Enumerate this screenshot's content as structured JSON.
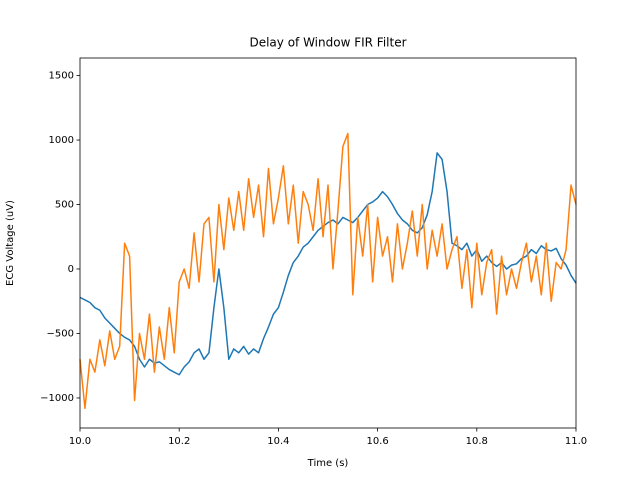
{
  "chart_data": {
    "type": "line",
    "title": "Delay of Window FIR Filter",
    "xlabel": "Time (s)",
    "ylabel": "ECG Voltage (uV)",
    "x": [
      10.0,
      10.01,
      10.02,
      10.03,
      10.04,
      10.05,
      10.06,
      10.07,
      10.08,
      10.09,
      10.1,
      10.11,
      10.12,
      10.13,
      10.14,
      10.15,
      10.16,
      10.17,
      10.18,
      10.19,
      10.2,
      10.21,
      10.22,
      10.23,
      10.24,
      10.25,
      10.26,
      10.27,
      10.28,
      10.29,
      10.3,
      10.31,
      10.32,
      10.33,
      10.34,
      10.35,
      10.36,
      10.37,
      10.38,
      10.39,
      10.4,
      10.41,
      10.42,
      10.43,
      10.44,
      10.45,
      10.46,
      10.47,
      10.48,
      10.49,
      10.5,
      10.51,
      10.52,
      10.53,
      10.54,
      10.55,
      10.56,
      10.57,
      10.58,
      10.59,
      10.6,
      10.61,
      10.62,
      10.63,
      10.64,
      10.65,
      10.66,
      10.67,
      10.68,
      10.69,
      10.7,
      10.71,
      10.72,
      10.73,
      10.74,
      10.75,
      10.76,
      10.77,
      10.78,
      10.79,
      10.8,
      10.81,
      10.82,
      10.83,
      10.84,
      10.85,
      10.86,
      10.87,
      10.88,
      10.89,
      10.9,
      10.91,
      10.92,
      10.93,
      10.94,
      10.95,
      10.96,
      10.97,
      10.98,
      10.99,
      11.0
    ],
    "series": [
      {
        "color": "#1f77b4",
        "values": [
          -220,
          -240,
          -260,
          -300,
          -320,
          -380,
          -420,
          -460,
          -500,
          -530,
          -550,
          -600,
          -700,
          -760,
          -700,
          -730,
          -720,
          -750,
          -780,
          -800,
          -820,
          -760,
          -720,
          -650,
          -620,
          -700,
          -650,
          -300,
          0,
          -300,
          -700,
          -620,
          -650,
          -600,
          -660,
          -620,
          -650,
          -540,
          -450,
          -350,
          -300,
          -180,
          -50,
          50,
          100,
          170,
          200,
          250,
          300,
          330,
          360,
          380,
          350,
          400,
          380,
          360,
          400,
          450,
          500,
          520,
          550,
          600,
          560,
          500,
          430,
          380,
          350,
          300,
          280,
          320,
          420,
          600,
          900,
          850,
          600,
          200,
          180,
          150,
          200,
          100,
          150,
          60,
          100,
          50,
          20,
          50,
          0,
          30,
          40,
          80,
          100,
          150,
          120,
          180,
          150,
          140,
          160,
          80,
          30,
          -50,
          -110
        ]
      },
      {
        "color": "#ff7f0e",
        "values": [
          -700,
          -1080,
          -700,
          -800,
          -550,
          -750,
          -480,
          -700,
          -600,
          200,
          100,
          -1020,
          -500,
          -700,
          -350,
          -800,
          -450,
          -700,
          -300,
          -650,
          -100,
          0,
          -150,
          280,
          -100,
          350,
          400,
          -100,
          500,
          150,
          550,
          300,
          600,
          300,
          700,
          400,
          650,
          250,
          780,
          350,
          550,
          800,
          350,
          650,
          200,
          600,
          500,
          300,
          700,
          250,
          650,
          0,
          450,
          950,
          1050,
          -200,
          400,
          100,
          500,
          -100,
          400,
          100,
          250,
          -100,
          350,
          0,
          200,
          450,
          100,
          500,
          0,
          300,
          100,
          350,
          0,
          150,
          250,
          -150,
          150,
          -300,
          200,
          -200,
          50,
          150,
          -350,
          100,
          -200,
          0,
          -150,
          50,
          200,
          -100,
          100,
          -200,
          200,
          -250,
          50,
          0,
          150,
          650,
          500
        ]
      }
    ],
    "xlim": [
      10,
      11
    ],
    "xticks": [
      {
        "value": 10,
        "label": "10.0"
      },
      10.2,
      10.4,
      10.6,
      10.8,
      {
        "value": 11,
        "label": "11.0"
      }
    ],
    "ylim": [
      -1233,
      1636
    ],
    "yticks": [
      {
        "value": -1000,
        "label": "−1000"
      },
      {
        "value": -500,
        "label": "−500"
      },
      0,
      500,
      1000,
      1500
    ],
    "grid": false
  }
}
